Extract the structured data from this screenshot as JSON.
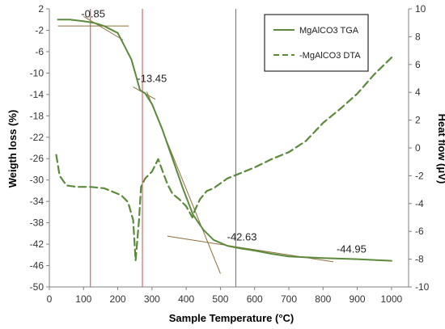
{
  "chart_data": {
    "type": "line",
    "xlabel": "Sample Temperature (°C)",
    "ylabel_left": "Weigth loss (%)",
    "ylabel_right": "Heat flow (μV)",
    "xlim": [
      0,
      1050
    ],
    "ylim_left": [
      -50,
      2
    ],
    "ylim_right": [
      -10,
      10
    ],
    "x_ticks": [
      0,
      100,
      200,
      300,
      400,
      500,
      600,
      700,
      800,
      900,
      1000
    ],
    "y_left_ticks": [
      2,
      -2,
      -6,
      -10,
      -14,
      -18,
      -22,
      -26,
      -30,
      -34,
      -38,
      -42,
      -46,
      -50
    ],
    "y_right_ticks": [
      10,
      8,
      6,
      4,
      2,
      0,
      -2,
      -4,
      -6,
      -8,
      -10
    ],
    "grid": false,
    "legend_position": "top-right",
    "colors": {
      "series": "#5b8a3c",
      "markers": "#c0504d",
      "tangent": "#8b6f3a"
    },
    "series": [
      {
        "name": "MgAlCO3 TGA",
        "axis": "left",
        "style": "solid",
        "x": [
          25,
          60,
          100,
          130,
          160,
          200,
          240,
          265,
          280,
          300,
          330,
          360,
          390,
          420,
          450,
          480,
          520,
          560,
          600,
          650,
          700,
          800,
          900,
          1000
        ],
        "y": [
          0,
          0,
          -0.3,
          -0.6,
          -1.2,
          -2.5,
          -7.5,
          -13.2,
          -13.8,
          -15.8,
          -20.5,
          -26,
          -31.5,
          -36.5,
          -39.3,
          -41.2,
          -42.3,
          -42.8,
          -43.2,
          -43.8,
          -44.3,
          -44.6,
          -44.8,
          -45.1
        ]
      },
      {
        "name": "-MgAlCO3 DTA",
        "axis": "right",
        "style": "dashed",
        "x": [
          20,
          30,
          50,
          80,
          120,
          160,
          190,
          210,
          230,
          245,
          252,
          262,
          268,
          280,
          300,
          318,
          330,
          345,
          360,
          380,
          400,
          418,
          425,
          440,
          460,
          480,
          520,
          560,
          600,
          650,
          700,
          750,
          800,
          850,
          900,
          950,
          1000
        ],
        "y": [
          -0.5,
          -2.0,
          -2.7,
          -2.8,
          -2.8,
          -2.9,
          -3.2,
          -3.4,
          -3.9,
          -5.2,
          -8.1,
          -5.2,
          -2.8,
          -2.2,
          -1.7,
          -0.8,
          -1.6,
          -2.6,
          -3.3,
          -3.7,
          -4.2,
          -5.0,
          -4.5,
          -3.7,
          -3.1,
          -2.9,
          -2.2,
          -1.8,
          -1.4,
          -0.8,
          -0.3,
          0.5,
          1.8,
          2.8,
          3.9,
          5.3,
          6.5
        ]
      }
    ],
    "vertical_markers_x": [
      120,
      272,
      545
    ],
    "tangent_lines": [
      {
        "x": [
          25,
          232
        ],
        "y": [
          -1.2,
          -1.2
        ]
      },
      {
        "x": [
          100,
          215
        ],
        "y": [
          0.6,
          -3.8
        ]
      },
      {
        "x": [
          245,
          310
        ],
        "y": [
          -12.6,
          -14.9
        ]
      },
      {
        "x": [
          285,
          500
        ],
        "y": [
          -13.5,
          -47.5
        ]
      },
      {
        "x": [
          345,
          830
        ],
        "y": [
          -40.5,
          -45.3
        ]
      }
    ],
    "annotations": [
      {
        "text": "-0.85",
        "x": 128,
        "y": 0.4
      },
      {
        "text": "-13.45",
        "x": 300,
        "y": -11.7
      },
      {
        "text": "-42.63",
        "x": 563,
        "y": -41.3
      },
      {
        "text": "-44.95",
        "x": 883,
        "y": -43.6
      }
    ]
  }
}
